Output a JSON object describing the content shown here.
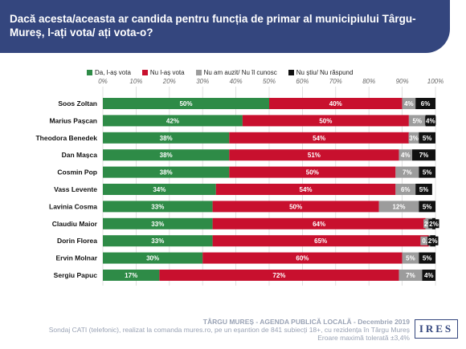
{
  "header": {
    "title": "Dacă acesta/aceasta ar candida pentru funcția de primar al municipiului Târgu-Mureș, l-ați vota/ ați vota-o?"
  },
  "footer": {
    "line1": "TÂRGU MUREȘ - AGENDA PUBLICĂ LOCALĂ - Decembrie 2019",
    "line2": "Sondaj CATI (telefonic), realizat la comanda mures.ro, pe un eșantion de 841 subiecți 18+, cu rezidența în Târgu Mureș",
    "line3": "Eroare maximă tolerată ±3,4%"
  },
  "logo": {
    "text": "IRES"
  },
  "chart_data": {
    "type": "bar",
    "orientation": "horizontal",
    "stacked": "percent",
    "title": "",
    "xlabel": "",
    "ylabel": "",
    "xlim": [
      0,
      100
    ],
    "ticks": [
      "0%",
      "10%",
      "20%",
      "30%",
      "40%",
      "50%",
      "60%",
      "70%",
      "80%",
      "90%",
      "100%"
    ],
    "legend_position": "top",
    "grid": true,
    "categories": [
      "Soos Zoltan",
      "Marius Pașcan",
      "Theodora Benedek",
      "Dan Mașca",
      "Cosmin Pop",
      "Vass Levente",
      "Lavinia Cosma",
      "Claudiu Maior",
      "Dorin Florea",
      "Ervin Molnar",
      "Sergiu Papuc"
    ],
    "series": [
      {
        "name": "Da, l-aș vota",
        "color": "#2e8b47",
        "label_color": "#ffffff",
        "values": [
          50,
          42,
          38,
          38,
          38,
          34,
          33,
          33,
          33,
          30,
          17
        ],
        "labels": [
          "50%",
          "42%",
          "38%",
          "38%",
          "38%",
          "34%",
          "33%",
          "33%",
          "33%",
          "30%",
          "17%"
        ]
      },
      {
        "name": "Nu l-aș vota",
        "color": "#c8102e",
        "label_color": "#ffffff",
        "values": [
          40,
          50,
          54,
          51,
          50,
          54,
          50,
          64,
          65,
          60,
          72
        ],
        "labels": [
          "40%",
          "50%",
          "54%",
          "51%",
          "50%",
          "54%",
          "50%",
          "64%",
          "65%",
          "60%",
          "72%"
        ]
      },
      {
        "name": "Nu am auzit/ Nu îl cunosc",
        "color": "#9c9c9c",
        "label_color": "#ffffff",
        "values": [
          4,
          5,
          3,
          4,
          7,
          6,
          12,
          2,
          0.4,
          5,
          7
        ],
        "labels": [
          "4%",
          "5%",
          "3%",
          "4%",
          "7%",
          "6%",
          "12%",
          "2%",
          "0.4%",
          "5%",
          "7%"
        ]
      },
      {
        "name": "Nu știu/ Nu răspund",
        "color": "#111111",
        "label_color": "#ffffff",
        "values": [
          6,
          4,
          5,
          7,
          5,
          5,
          5,
          2,
          2,
          5,
          4
        ],
        "labels": [
          "6%",
          "4%",
          "5%",
          "7%",
          "5%",
          "5%",
          "5%",
          "2%",
          "2%",
          "5%",
          "4%"
        ]
      }
    ]
  }
}
